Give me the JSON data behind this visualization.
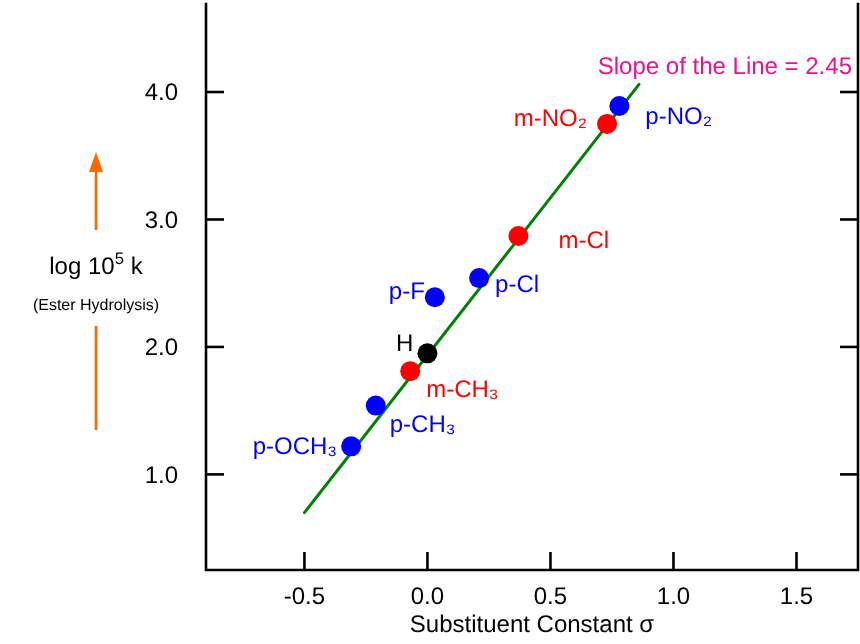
{
  "chart_data": {
    "type": "scatter",
    "xlabel": "Substituent Constant σ",
    "ylabel": "log 10$^{5}$ k",
    "subtitle": "(Ester Hydrolysis)",
    "xlim": [
      -0.9,
      1.75
    ],
    "ylim": [
      0.25,
      4.7
    ],
    "xticks": [
      {
        "value": -0.5,
        "label": "-0.5"
      },
      {
        "value": 0,
        "label": "0.0"
      },
      {
        "value": 0.5,
        "label": "0.5"
      },
      {
        "value": 1,
        "label": "1.0"
      },
      {
        "value": 1.5,
        "label": "1.5"
      }
    ],
    "yticks": [
      {
        "value": 1,
        "label": "1.0"
      },
      {
        "value": 2,
        "label": "2.0"
      },
      {
        "value": 3,
        "label": "3.0"
      },
      {
        "value": 4,
        "label": "4.0"
      }
    ],
    "grid": false,
    "series": [
      {
        "type": "line",
        "color": "#008000",
        "x": [
          -0.5,
          0.86
        ],
        "values": [
          0.7,
          4.06
        ]
      },
      {
        "marker": "circle",
        "x": [
          0.78,
          0.73,
          0.37,
          0.21,
          0.03,
          0,
          -0.07,
          -0.21,
          -0.31
        ],
        "values": [
          3.89,
          3.75,
          2.87,
          2.54,
          2.39,
          1.95,
          1.81,
          1.54,
          1.22
        ],
        "colors": [
          "#0000ff",
          "#ff0000",
          "#ff0000",
          "#0000ff",
          "#0000ff",
          "#000000",
          "#ff0000",
          "#0000ff",
          "#0000ff"
        ]
      }
    ],
    "annotations": [
      "Slope of the Line = 2.45",
      {
        "text": "p-NO₂",
        "x": 0.78,
        "y": 3.89
      },
      {
        "text": "m-NO₂",
        "x": 0.73,
        "y": 3.75
      },
      {
        "text": "m-Cl",
        "x": 0.37,
        "y": 2.87
      },
      {
        "text": "p-Cl",
        "x": 0.21,
        "y": 2.54
      },
      {
        "text": "p-F",
        "x": 0.03,
        "y": 2.39
      },
      {
        "text": "H",
        "x": 0,
        "y": 1.95
      },
      {
        "text": "m-CH₃",
        "x": -0.07,
        "y": 1.81
      },
      {
        "text": "p-CH₃",
        "x": -0.21,
        "y": 1.54
      },
      {
        "text": "p-OCH₃",
        "x": -0.31,
        "y": 1.22
      }
    ]
  }
}
